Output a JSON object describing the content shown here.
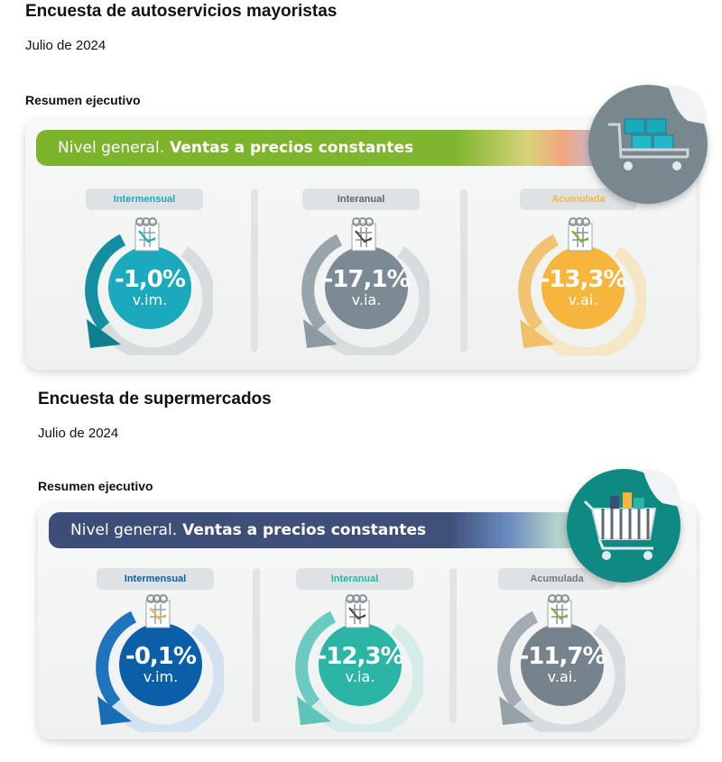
{
  "section1": {
    "title": "Encuesta de autoservicios mayoristas",
    "date": "Julio de 2024",
    "summary": "Resumen ejecutivo",
    "banner_light": "Nivel general.",
    "banner_bold": "Ventas a precios constantes",
    "badge_icon": "shopping-cart-with-boxes-icon",
    "metrics": [
      {
        "label": "Intermensual",
        "value": "-1,0%",
        "unit": "v.im.",
        "color": "#1aa9bd"
      },
      {
        "label": "Interanual",
        "value": "-17,1%",
        "unit": "v.ia.",
        "color": "#7b8a93"
      },
      {
        "label": "Acumulada",
        "value": "-13,3%",
        "unit": "v.ai.",
        "color": "#f6b53c"
      }
    ]
  },
  "section2": {
    "title": "Encuesta de supermercados",
    "date": "Julio de 2024",
    "summary": "Resumen ejecutivo",
    "banner_light": "Nivel general.",
    "banner_bold": "Ventas a precios constantes",
    "badge_icon": "supermarket-cart-icon",
    "metrics": [
      {
        "label": "Intermensual",
        "value": "-0,1%",
        "unit": "v.im.",
        "color": "#0b5ea8"
      },
      {
        "label": "Interanual",
        "value": "-12,3%",
        "unit": "v.ia.",
        "color": "#2ab5a5"
      },
      {
        "label": "Acumulada",
        "value": "-11,7%",
        "unit": "v.ai.",
        "color": "#76838c"
      }
    ]
  }
}
